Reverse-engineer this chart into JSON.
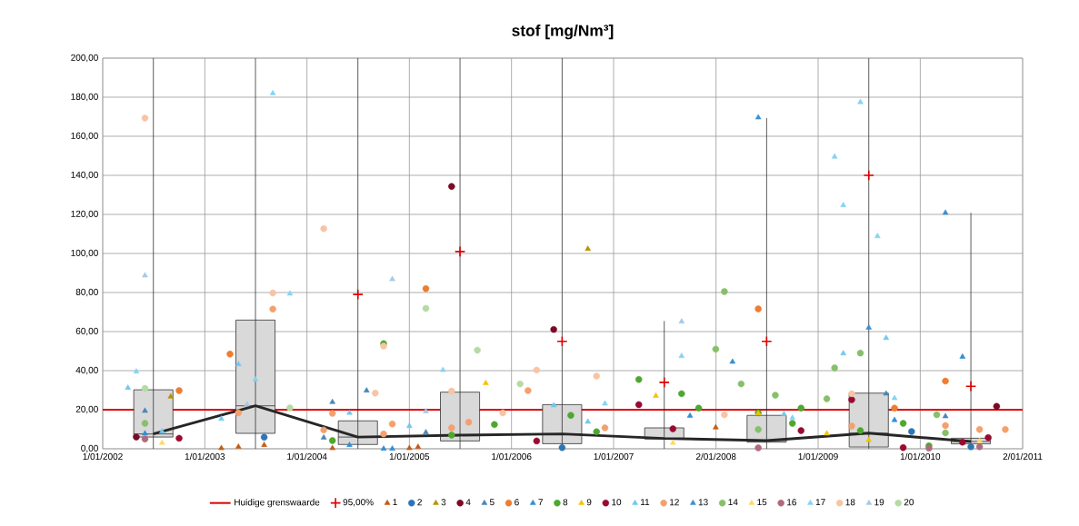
{
  "chart_data": {
    "type": "scatter",
    "title": "stof [mg/Nm³]",
    "grid": true,
    "legend": "bottom",
    "xlim": [
      "2002-01-01",
      "2011-01-02"
    ],
    "xticks": [
      {
        "value": "2002-01-01",
        "label": "1/01/2002"
      },
      {
        "value": "2003-01-01",
        "label": "1/01/2003"
      },
      {
        "value": "2004-01-01",
        "label": "1/01/2004"
      },
      {
        "value": "2005-01-01",
        "label": "1/01/2005"
      },
      {
        "value": "2006-01-01",
        "label": "1/01/2006"
      },
      {
        "value": "2007-01-01",
        "label": "1/01/2007"
      },
      {
        "value": "2008-01-02",
        "label": "2/01/2008"
      },
      {
        "value": "2009-01-01",
        "label": "1/01/2009"
      },
      {
        "value": "2010-01-01",
        "label": "1/01/2010"
      },
      {
        "value": "2011-01-02",
        "label": "2/01/2011"
      }
    ],
    "ylim": [
      0,
      200
    ],
    "yticks": [
      {
        "value": 0,
        "label": "0,00"
      },
      {
        "value": 20,
        "label": "20,00"
      },
      {
        "value": 40,
        "label": "40,00"
      },
      {
        "value": 60,
        "label": "60,00"
      },
      {
        "value": 80,
        "label": "80,00"
      },
      {
        "value": 100,
        "label": "100,00"
      },
      {
        "value": 120,
        "label": "120,00"
      },
      {
        "value": 140,
        "label": "140,00"
      },
      {
        "value": 160,
        "label": "160,00"
      },
      {
        "value": 180,
        "label": "180,00"
      },
      {
        "value": 200,
        "label": "200,00"
      }
    ],
    "ref_lines": [
      {
        "axis": "y",
        "value": 20,
        "label": "Huidige grenswaarde",
        "color": "#e00000"
      }
    ],
    "series": [
      {
        "type": "box",
        "color": "#d9d9d9",
        "x": [
          "2002-07",
          "2003-07",
          "2004-07",
          "2005-07",
          "2006-07",
          "2007-07",
          "2008-07",
          "2009-07",
          "2010-07"
        ],
        "boxes": [
          {
            "low": 0,
            "q1": 6,
            "median": 7.6,
            "q3": 30.2,
            "high": 200
          },
          {
            "low": 0,
            "q1": 7.9,
            "median": 22,
            "q3": 65.9,
            "high": 200
          },
          {
            "low": 0,
            "q1": 2.2,
            "median": 6,
            "q3": 14.3,
            "high": 200
          },
          {
            "low": 0,
            "q1": 4,
            "median": 7,
            "q3": 29,
            "high": 200
          },
          {
            "low": 0,
            "q1": 2.6,
            "median": 7.6,
            "q3": 22.6,
            "high": 200
          },
          {
            "low": 0,
            "q1": 5,
            "median": 5.3,
            "q3": 10.7,
            "high": 65.4
          },
          {
            "low": 0,
            "q1": 3.4,
            "median": 4.2,
            "q3": 17.1,
            "high": 169.3
          },
          {
            "low": 0,
            "q1": 0.9,
            "median": 8,
            "q3": 28.5,
            "high": 200
          },
          {
            "low": 0,
            "q1": 2.5,
            "median": 3.7,
            "q3": 5.4,
            "high": 120.8
          }
        ]
      },
      {
        "type": "line",
        "color": "#262626",
        "x": [
          "2002-07",
          "2003-07",
          "2004-07",
          "2005-07",
          "2006-07",
          "2007-07",
          "2008-07",
          "2009-07",
          "2010-07"
        ],
        "values": [
          7.6,
          22,
          6,
          7,
          7.6,
          5.3,
          4.2,
          8,
          3.7
        ]
      },
      {
        "name": "95,00%",
        "marker": "cross",
        "color": "#e00000",
        "x": [
          "2004-07",
          "2005-07",
          "2006-07",
          "2007-07",
          "2008-07",
          "2009-07",
          "2010-07"
        ],
        "values": [
          79,
          101,
          55,
          34,
          55,
          140,
          32
        ]
      },
      {
        "name": "1",
        "type": "scatter",
        "marker": "triangle",
        "color": "#c55a11",
        "x": [
          "2003-03",
          "2003-05",
          "2003-08",
          "2004-04",
          "2005-01",
          "2005-02",
          "2008-01"
        ],
        "values": [
          0.3,
          1,
          1.9,
          0.3,
          0.3,
          0.9,
          10.9
        ]
      },
      {
        "name": "2",
        "type": "scatter",
        "marker": "circle",
        "color": "#2e75b6",
        "x": [
          "2003-08",
          "2006-07",
          "2009-12",
          "2010-07"
        ],
        "values": [
          5.9,
          0.6,
          8.8,
          1
        ]
      },
      {
        "name": "3",
        "type": "scatter",
        "marker": "triangle",
        "color": "#bf9000",
        "x": [
          "2002-09",
          "2006-10"
        ],
        "values": [
          26.7,
          102.3
        ]
      },
      {
        "name": "4",
        "type": "scatter",
        "marker": "circle",
        "color": "#7b0a26",
        "x": [
          "2002-05",
          "2005-06",
          "2006-06",
          "2010-10"
        ],
        "values": [
          6,
          134.3,
          61.1,
          21.7
        ]
      },
      {
        "name": "5",
        "type": "scatter",
        "marker": "triangle",
        "color": "#4a86b8",
        "x": [
          "2002-06",
          "2004-04",
          "2004-08",
          "2004-03",
          "2005-03",
          "2009-09",
          "2010-04"
        ],
        "values": [
          19.4,
          23.9,
          29.8,
          5.7,
          8.4,
          28.2,
          16.6
        ]
      },
      {
        "name": "6",
        "type": "scatter",
        "marker": "circle",
        "color": "#ed7d31",
        "x": [
          "2002-10",
          "2003-04",
          "2005-03",
          "2008-06",
          "2009-10",
          "2010-04"
        ],
        "values": [
          29.8,
          48.5,
          82,
          71.6,
          20.8,
          34.7
        ]
      },
      {
        "name": "7",
        "type": "scatter",
        "marker": "triangle",
        "color": "#2f8fd6",
        "x": [
          "2002-06",
          "2004-06",
          "2004-10",
          "2004-11",
          "2007-10",
          "2009-10",
          "2010-06"
        ],
        "values": [
          7.8,
          1.9,
          0,
          0,
          16.9,
          14.7,
          47.1
        ]
      },
      {
        "name": "8",
        "type": "scatter",
        "marker": "circle",
        "color": "#4ea72e",
        "x": [
          "2004-10",
          "2004-04",
          "2005-06",
          "2005-11",
          "2006-08",
          "2006-11",
          "2007-04",
          "2007-09",
          "2007-11",
          "2008-06",
          "2008-11",
          "2008-10",
          "2009-06",
          "2009-11",
          "2010-02"
        ],
        "values": [
          53.8,
          4.2,
          7,
          12.4,
          17.1,
          8.7,
          35.5,
          28.2,
          20.8,
          18.4,
          20.8,
          13,
          9.3,
          13,
          1.5
        ]
      },
      {
        "name": "9",
        "type": "scatter",
        "marker": "triangle",
        "color": "#f5c400",
        "x": [
          "2005-10",
          "2007-06",
          "2008-06",
          "2009-02",
          "2009-07"
        ],
        "values": [
          33.6,
          27.1,
          18.1,
          7.8,
          4.5
        ]
      },
      {
        "name": "10",
        "type": "scatter",
        "marker": "circle",
        "color": "#9a0a30",
        "x": [
          "2002-10",
          "2006-04",
          "2007-04",
          "2007-08",
          "2008-11",
          "2009-05",
          "2009-11",
          "2010-09",
          "2010-06"
        ],
        "values": [
          5.4,
          4,
          22.6,
          10.2,
          9.3,
          25.1,
          0.6,
          5.7,
          3.4
        ]
      },
      {
        "name": "11",
        "type": "scatter",
        "marker": "triangle",
        "color": "#72c8ee",
        "x": [
          "2002-04",
          "2002-08",
          "2003-03",
          "2003-05",
          "2004-06",
          "2005-01",
          "2006-06",
          "2006-10",
          "2008-09",
          "2009-04",
          "2009-09"
        ],
        "values": [
          31.2,
          8.8,
          15.3,
          43.3,
          18.4,
          11.6,
          22.2,
          13.8,
          17.7,
          48.8,
          56.7
        ]
      },
      {
        "name": "12",
        "type": "scatter",
        "marker": "circle",
        "color": "#f4a06e",
        "x": [
          "2003-05",
          "2003-09",
          "2004-04",
          "2004-03",
          "2004-11",
          "2004-10",
          "2005-06",
          "2005-08",
          "2006-03",
          "2006-12",
          "2009-05",
          "2010-04",
          "2010-08",
          "2010-11"
        ],
        "values": [
          18.4,
          71.5,
          18.1,
          9.6,
          12.7,
          7.6,
          10.7,
          13.6,
          29.8,
          10.7,
          11.6,
          11.9,
          9.9,
          9.9
        ]
      },
      {
        "name": "13",
        "type": "scatter",
        "marker": "triangle",
        "color": "#3a8fd2",
        "x": [
          "2008-03",
          "2008-06",
          "2009-07",
          "2010-04"
        ],
        "values": [
          44.5,
          169.6,
          62,
          120.8
        ]
      },
      {
        "name": "14",
        "type": "scatter",
        "marker": "circle",
        "color": "#86c06a",
        "x": [
          "2002-06",
          "2008-01",
          "2008-02",
          "2008-04",
          "2008-08",
          "2008-06",
          "2009-03",
          "2009-02",
          "2009-06",
          "2010-03",
          "2010-04"
        ],
        "values": [
          13,
          51,
          80.5,
          33.2,
          27.4,
          9.9,
          41.4,
          25.6,
          49,
          17.4,
          8.1
        ]
      },
      {
        "name": "15",
        "type": "scatter",
        "marker": "triangle",
        "color": "#ffd966",
        "x": [
          "2002-08",
          "2007-08",
          "2010-08"
        ],
        "values": [
          3,
          3,
          4
        ]
      },
      {
        "name": "16",
        "type": "scatter",
        "marker": "circle",
        "color": "#b06a7c",
        "x": [
          "2002-06",
          "2008-06",
          "2010-02",
          "2010-08"
        ],
        "values": [
          5,
          0.5,
          0.3,
          1
        ]
      },
      {
        "name": "17",
        "type": "scatter",
        "marker": "triangle",
        "color": "#86d3f2",
        "x": [
          "2002-05",
          "2003-07",
          "2003-09",
          "2003-11",
          "2007-09",
          "2008-10",
          "2009-03",
          "2009-04",
          "2009-06",
          "2009-08",
          "2009-10",
          "2005-05",
          "2006-12"
        ],
        "values": [
          39.5,
          35.5,
          182,
          79.4,
          47.4,
          15.8,
          149.5,
          124.7,
          177.4,
          108.8,
          25.9,
          40.3,
          23.1
        ]
      },
      {
        "name": "18",
        "type": "scatter",
        "marker": "circle",
        "color": "#f7c4a4",
        "x": [
          "2002-06",
          "2003-09",
          "2004-03",
          "2004-10",
          "2004-09",
          "2005-06",
          "2005-12",
          "2006-04",
          "2006-11",
          "2008-02",
          "2009-05"
        ],
        "values": [
          169.3,
          79.8,
          112.7,
          52.6,
          28.5,
          29.5,
          18.4,
          40.3,
          37.2,
          17.4,
          28.2
        ]
      },
      {
        "name": "19",
        "type": "scatter",
        "marker": "triangle",
        "color": "#a9c9e6",
        "x": [
          "2002-06",
          "2004-11",
          "2005-03",
          "2007-09",
          "2003-06"
        ],
        "values": [
          88.7,
          86.8,
          19.2,
          65.1,
          22.8
        ]
      },
      {
        "name": "20",
        "type": "scatter",
        "marker": "circle",
        "color": "#b5dba4",
        "x": [
          "2002-06",
          "2003-11",
          "2005-03",
          "2005-09",
          "2006-02"
        ],
        "values": [
          30.9,
          20.9,
          71.9,
          50.5,
          33.2
        ]
      }
    ]
  }
}
